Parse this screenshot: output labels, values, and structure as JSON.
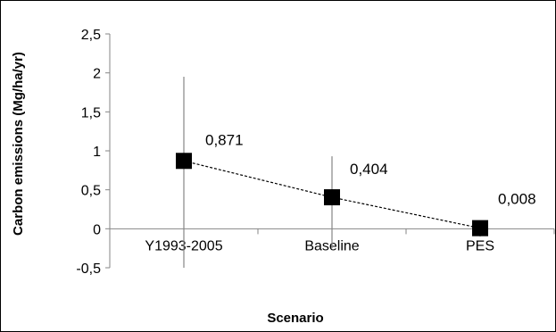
{
  "chart_data": {
    "type": "scatter",
    "title": "",
    "xlabel": "Scenario",
    "ylabel": "Carbon emissions (Mg/ha/yr)",
    "categories": [
      "Y1993-2005",
      "Baseline",
      "PES"
    ],
    "values": [
      0.871,
      0.404,
      0.008
    ],
    "data_labels": [
      "0,871",
      "0,404",
      "0,008"
    ],
    "error_bars": [
      {
        "low": -0.5,
        "high": 1.95
      },
      {
        "low": -0.25,
        "high": 0.93
      },
      {
        "low": -0.1,
        "high": 0.05
      }
    ],
    "connector": "dashed",
    "marker": "square",
    "marker_color": "#000000",
    "ylim": [
      -0.5,
      2.5
    ],
    "y_ticks": [
      -0.5,
      0,
      0.5,
      1,
      1.5,
      2,
      2.5
    ],
    "y_tick_labels": [
      "-0,5",
      "0",
      "0,5",
      "1",
      "1,5",
      "2",
      "2,5"
    ],
    "grid": false,
    "legend": "none"
  }
}
